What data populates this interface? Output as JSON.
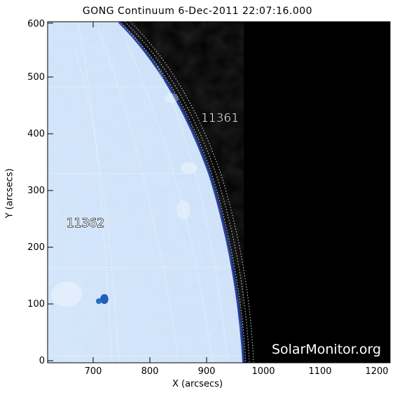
{
  "title": "GONG Continuum   6-Dec-2011 22:07:16.000",
  "x_axis": {
    "label": "X (arcsecs)",
    "ticks": [
      "700",
      "800",
      "900",
      "1000",
      "1100",
      "1200"
    ]
  },
  "y_axis": {
    "label": "Y (arcsecs)",
    "ticks": [
      "0",
      "100",
      "200",
      "300",
      "400",
      "500",
      "600"
    ]
  },
  "regions": [
    {
      "id": "11361",
      "label": "11361"
    },
    {
      "id": "11362",
      "label": "11362"
    }
  ],
  "watermark": "SolarMonitor.org",
  "colors": {
    "disk_center": "#cfe3fb",
    "disk_limb": "#1f3fbf",
    "space": "#000000",
    "grid": "#ffffff",
    "sunspot": "#1f5fb8"
  }
}
